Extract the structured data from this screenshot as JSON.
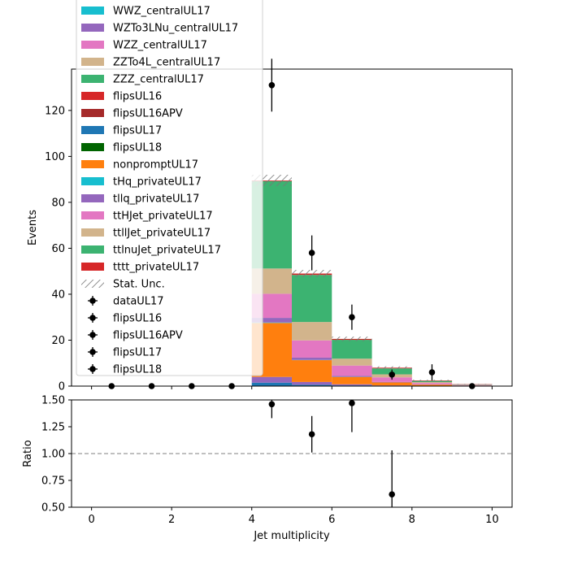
{
  "chart_data": [
    {
      "type": "bar",
      "stacked": true,
      "bin_edges": [
        0,
        1,
        2,
        3,
        4,
        5,
        6,
        7,
        8,
        9,
        10
      ],
      "ylabel": "Events",
      "ylim": [
        0,
        138
      ],
      "yticks": [
        0,
        20,
        40,
        60,
        80,
        100,
        120
      ],
      "series": [
        {
          "name": "flipsUL17",
          "color": "#1f77b4",
          "values": [
            0,
            0,
            0,
            0,
            1.5,
            0.6,
            0.3,
            0.1,
            0.05,
            0
          ]
        },
        {
          "name": "tllq_privateUL17",
          "color": "#9467bd",
          "values": [
            0,
            0,
            0,
            0,
            2.5,
            1.2,
            0.5,
            0.2,
            0.1,
            0.05
          ]
        },
        {
          "name": "nonpromptUL17",
          "color": "#ff7f0e",
          "values": [
            0,
            0,
            0,
            0,
            23.5,
            9.5,
            3.2,
            1.3,
            0.5,
            0.2
          ]
        },
        {
          "name": "tHq_privateUL17",
          "color": "#17becf",
          "values": [
            0,
            0,
            0,
            0,
            0.2,
            0.1,
            0.05,
            0.02,
            0.01,
            0
          ]
        },
        {
          "name": "tllq_privateUL17",
          "color": "#9467bd",
          "values": [
            0,
            0,
            0,
            0,
            2.0,
            1.0,
            0.4,
            0.2,
            0.1,
            0.05
          ]
        },
        {
          "name": "ttHJet_privateUL17",
          "color": "#e377c2",
          "values": [
            0,
            0,
            0,
            0,
            10.5,
            7.5,
            4.5,
            2.0,
            0.6,
            0.2
          ]
        },
        {
          "name": "ttllJet_privateUL17",
          "color": "#d2b48c",
          "values": [
            0,
            0,
            0,
            0,
            11.0,
            8.0,
            3.0,
            1.3,
            0.4,
            0.1
          ]
        },
        {
          "name": "ttlnuJet_privateUL17",
          "color": "#3cb371",
          "values": [
            0,
            0,
            0,
            0,
            38.0,
            20.5,
            8.2,
            2.6,
            0.5,
            0.15
          ]
        },
        {
          "name": "tttt_privateUL17",
          "color": "#d62728",
          "values": [
            0,
            0,
            0,
            0,
            0.3,
            0.6,
            0.4,
            0.3,
            0.2,
            0.1
          ]
        }
      ],
      "stat_unc": [
        0,
        0,
        0,
        0,
        2.5,
        1.6,
        1.0,
        0.6,
        0.3,
        0.1
      ],
      "data_points": {
        "x": [
          0.5,
          1.5,
          2.5,
          3.5,
          4.5,
          5.5,
          6.5,
          7.5,
          8.5,
          9.5
        ],
        "y": [
          0,
          0,
          0,
          0,
          131,
          58,
          30,
          5,
          6,
          0
        ],
        "err": [
          0,
          0,
          0,
          0,
          11.5,
          7.6,
          5.5,
          2.2,
          3.5,
          0
        ]
      },
      "legend_placement": "upper-left",
      "legend": [
        {
          "label": "WWZ_centralUL17",
          "kind": "patch",
          "color": "#17becf"
        },
        {
          "label": "WZTo3LNu_centralUL17",
          "kind": "patch",
          "color": "#9467bd"
        },
        {
          "label": "WZZ_centralUL17",
          "kind": "patch",
          "color": "#e377c2"
        },
        {
          "label": "ZZTo4L_centralUL17",
          "kind": "patch",
          "color": "#d2b48c"
        },
        {
          "label": "ZZZ_centralUL17",
          "kind": "patch",
          "color": "#3cb371"
        },
        {
          "label": "flipsUL16",
          "kind": "patch",
          "color": "#d62728"
        },
        {
          "label": "flipsUL16APV",
          "kind": "patch",
          "color": "#a52a2a"
        },
        {
          "label": "flipsUL17",
          "kind": "patch",
          "color": "#1f77b4"
        },
        {
          "label": "flipsUL18",
          "kind": "patch",
          "color": "#006400"
        },
        {
          "label": "nonpromptUL17",
          "kind": "patch",
          "color": "#ff7f0e"
        },
        {
          "label": "tHq_privateUL17",
          "kind": "patch",
          "color": "#17becf"
        },
        {
          "label": "tllq_privateUL17",
          "kind": "patch",
          "color": "#9467bd"
        },
        {
          "label": "ttHJet_privateUL17",
          "kind": "patch",
          "color": "#e377c2"
        },
        {
          "label": "ttllJet_privateUL17",
          "kind": "patch",
          "color": "#d2b48c"
        },
        {
          "label": "ttlnuJet_privateUL17",
          "kind": "patch",
          "color": "#3cb371"
        },
        {
          "label": "tttt_privateUL17",
          "kind": "patch",
          "color": "#d62728"
        },
        {
          "label": "Stat. Unc.",
          "kind": "hatch",
          "color": "#808080"
        },
        {
          "label": "dataUL17",
          "kind": "point",
          "color": "#000000"
        },
        {
          "label": "flipsUL16",
          "kind": "point",
          "color": "#000000"
        },
        {
          "label": "flipsUL16APV",
          "kind": "point",
          "color": "#000000"
        },
        {
          "label": "flipsUL17",
          "kind": "point",
          "color": "#000000"
        },
        {
          "label": "flipsUL18",
          "kind": "point",
          "color": "#000000"
        }
      ]
    },
    {
      "type": "scatter",
      "ylabel": "Ratio",
      "xlabel": "Jet multiplicity",
      "xlim": [
        -0.5,
        10.5
      ],
      "ylim": [
        0.5,
        1.5
      ],
      "xticks": [
        0,
        2,
        4,
        6,
        8,
        10
      ],
      "yticks": [
        "0.50",
        "0.75",
        "1.00",
        "1.25",
        "1.50"
      ],
      "reference_line": 1.0,
      "points": {
        "x": [
          4.5,
          5.5,
          6.5,
          7.5
        ],
        "y": [
          1.46,
          1.18,
          1.47,
          0.62
        ],
        "err": [
          0.13,
          0.17,
          0.27,
          0.41
        ]
      }
    }
  ]
}
